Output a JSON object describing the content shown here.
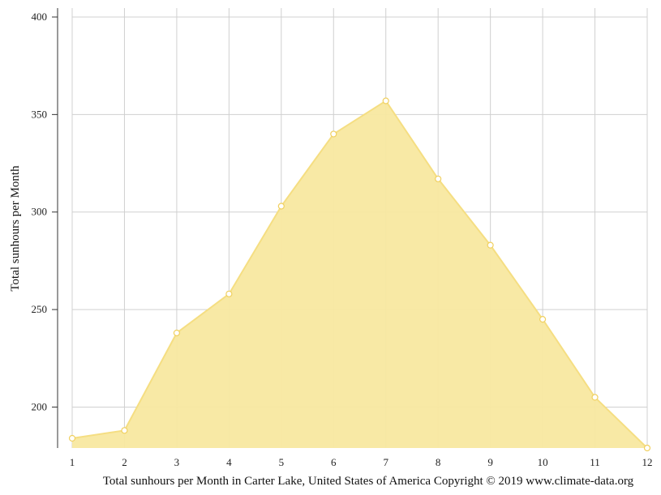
{
  "chart_data": {
    "type": "area",
    "x": [
      1,
      2,
      3,
      4,
      5,
      6,
      7,
      8,
      9,
      10,
      11,
      12
    ],
    "values": [
      184,
      188,
      238,
      258,
      303,
      340,
      357,
      317,
      283,
      245,
      205,
      179
    ],
    "xlim": [
      1,
      12
    ],
    "ylim": [
      179,
      400
    ],
    "yticks": [
      200,
      250,
      300,
      350,
      400
    ],
    "ylabel": "Total sunhours per Month",
    "caption": "Total sunhours per Month in Carter Lake, United States of America Copyright © 2019 www.climate-data.org",
    "grid": true,
    "fill_color": "#f8e8a0",
    "line_color": "#f5de82",
    "marker_fill": "#ffffff",
    "marker_stroke": "#f0d060",
    "grid_color": "#d0d0d0"
  }
}
